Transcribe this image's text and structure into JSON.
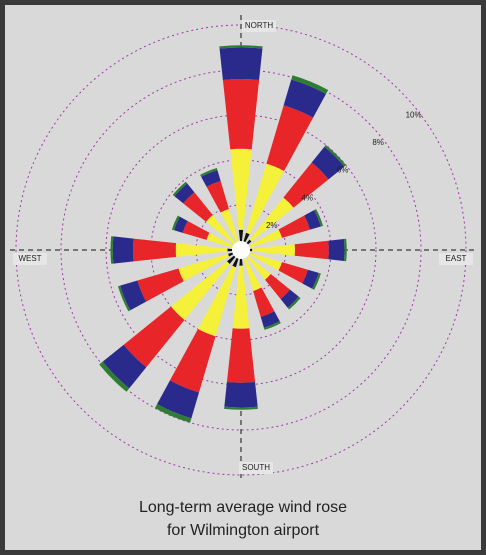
{
  "chart_data": {
    "type": "windrose",
    "title": [
      "Long-term average wind rose",
      "for Wilmington airport"
    ],
    "categories": [
      "NORTH",
      null,
      null,
      null,
      "EAST",
      null,
      null,
      null,
      "SOUTH",
      null,
      null,
      null,
      "WEST",
      null,
      null,
      null
    ],
    "rlim": [
      0,
      10
    ],
    "rticks": [
      {
        "value": 2,
        "label": "2%"
      },
      {
        "value": 4,
        "label": "4%"
      },
      {
        "value": 6,
        "label": "6%"
      },
      {
        "value": 8,
        "label": "8%"
      },
      {
        "value": 10,
        "label": "10%"
      }
    ],
    "series": [
      {
        "color": "#111111",
        "values": [
          0.9,
          0.8,
          0.6,
          0.4,
          0.5,
          0.4,
          0.3,
          0.4,
          0.7,
          0.8,
          0.8,
          0.6,
          0.6,
          0.3,
          0.4,
          0.4
        ]
      },
      {
        "color": "#f5f03a",
        "values": [
          3.6,
          3.2,
          2.4,
          1.5,
          1.9,
          1.5,
          1.4,
          1.5,
          2.8,
          3.2,
          3.2,
          2.3,
          2.3,
          1.3,
          1.6,
          1.5
        ]
      },
      {
        "color": "#e8262a",
        "values": [
          3.1,
          2.7,
          2.0,
          1.3,
          1.5,
          1.2,
          1.1,
          1.2,
          2.4,
          2.6,
          2.7,
          1.9,
          1.9,
          1.1,
          1.3,
          1.3
        ]
      },
      {
        "color": "#2a2a8c",
        "values": [
          1.4,
          1.2,
          0.9,
          0.5,
          0.7,
          0.5,
          0.5,
          0.5,
          1.1,
          1.2,
          1.2,
          0.8,
          0.9,
          0.4,
          0.5,
          0.5
        ]
      },
      {
        "color": "#2e7d32",
        "values": [
          0.1,
          0.2,
          0.1,
          0.1,
          0.1,
          0.1,
          0.1,
          0.1,
          0.1,
          0.2,
          0.2,
          0.1,
          0.1,
          0.1,
          0.1,
          0.1
        ]
      }
    ]
  }
}
